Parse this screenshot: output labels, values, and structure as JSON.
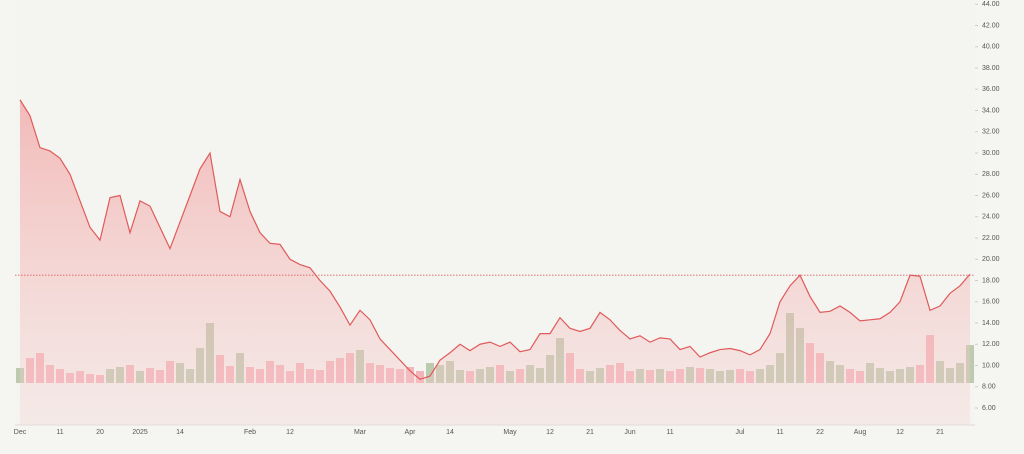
{
  "chart_data": {
    "type": "line",
    "categories": [
      "Dec",
      null,
      null,
      null,
      "11",
      null,
      null,
      null,
      "20",
      null,
      null,
      null,
      "2025",
      null,
      null,
      null,
      "14",
      null,
      null,
      null,
      null,
      null,
      null,
      "Feb",
      null,
      null,
      null,
      "12",
      null,
      null,
      null,
      null,
      null,
      null,
      "Mar",
      null,
      null,
      null,
      null,
      "Apr",
      null,
      null,
      null,
      "14",
      null,
      null,
      null,
      null,
      null,
      "May",
      null,
      null,
      null,
      "12",
      null,
      null,
      null,
      "21",
      null,
      null,
      null,
      "Jun",
      null,
      null,
      null,
      "11",
      null,
      null,
      null,
      null,
      null,
      null,
      "Jul",
      null,
      null,
      null,
      "11",
      null,
      null,
      null,
      "22",
      null,
      null,
      null,
      "Aug",
      null,
      null,
      null,
      "12",
      null,
      null,
      null,
      "21",
      null,
      null,
      null
    ],
    "values": [
      35,
      33.5,
      30.5,
      30.2,
      29.5,
      28,
      25.5,
      23,
      21.8,
      25.8,
      26,
      22.5,
      25.5,
      25,
      23,
      21,
      23.5,
      26,
      28.5,
      30,
      24.5,
      24,
      27.5,
      24.5,
      22.5,
      21.5,
      21.4,
      20,
      19.5,
      19.2,
      18,
      17,
      15.5,
      13.8,
      15.2,
      14.3,
      12.5,
      11.5,
      10.5,
      9.5,
      8.7,
      9,
      10.5,
      11.2,
      12,
      11.4,
      12,
      12.2,
      11.8,
      12.2,
      11.3,
      11.5,
      13,
      13,
      14.5,
      13.5,
      13.2,
      13.5,
      15,
      14.3,
      13.3,
      12.5,
      12.8,
      12.2,
      12.6,
      12.5,
      11.5,
      11.8,
      10.8,
      11.2,
      11.5,
      11.6,
      11.4,
      11,
      11.5,
      13,
      16,
      17.5,
      18.5,
      16.5,
      15,
      15.1,
      15.6,
      15,
      14.2,
      14.3,
      14.4,
      15,
      16,
      18.5,
      18.4,
      15.2,
      15.6,
      16.8,
      17.5,
      18.6
    ],
    "color": "#e05a5a",
    "volume_values": [
      15,
      25,
      30,
      18,
      14,
      10,
      12,
      9,
      8,
      14,
      16,
      18,
      12,
      15,
      13,
      22,
      20,
      14,
      35,
      60,
      28,
      17,
      30,
      16,
      14,
      22,
      18,
      12,
      20,
      14,
      13,
      22,
      25,
      30,
      33,
      20,
      18,
      15,
      14,
      16,
      12,
      20,
      18,
      22,
      13,
      12,
      14,
      16,
      18,
      12,
      14,
      18,
      15,
      28,
      45,
      30,
      14,
      12,
      15,
      18,
      20,
      12,
      14,
      13,
      14,
      12,
      14,
      16,
      15,
      14,
      12,
      13,
      14,
      12,
      14,
      18,
      30,
      70,
      55,
      40,
      30,
      22,
      18,
      14,
      12,
      20,
      15,
      12,
      14,
      16,
      18,
      48,
      22,
      15,
      20,
      38
    ],
    "up_color": "#bccbaf",
    "down_color": "#f3b4ba",
    "reference_value": 18.5,
    "ylim": [
      4.4,
      44.4
    ],
    "yticks": [
      {
        "value": 6,
        "label": "6.00"
      },
      {
        "value": 8,
        "label": "8.00"
      },
      {
        "value": 10,
        "label": "10.00"
      },
      {
        "value": 12,
        "label": "12.00"
      },
      {
        "value": 14,
        "label": "14.00"
      },
      {
        "value": 16,
        "label": "16.00"
      },
      {
        "value": 18,
        "label": "18.00"
      },
      {
        "value": 20,
        "label": "20.00"
      },
      {
        "value": 22,
        "label": "22.00"
      },
      {
        "value": 24,
        "label": "24.00"
      },
      {
        "value": 26,
        "label": "26.00"
      },
      {
        "value": 28,
        "label": "28.00"
      },
      {
        "value": 30,
        "label": "30.00"
      },
      {
        "value": 32,
        "label": "32.00"
      },
      {
        "value": 34,
        "label": "34.00"
      },
      {
        "value": 36,
        "label": "36.00"
      },
      {
        "value": 38,
        "label": "38.00"
      },
      {
        "value": 40,
        "label": "40.00"
      },
      {
        "value": 42,
        "label": "42.00"
      },
      {
        "value": 44,
        "label": "44.00"
      }
    ]
  }
}
